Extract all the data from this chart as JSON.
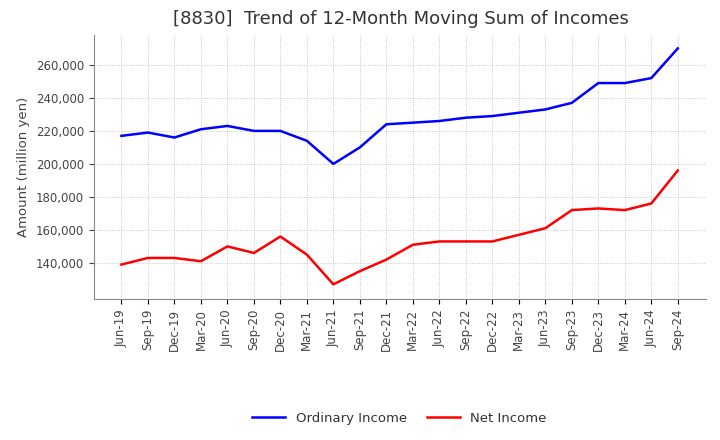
{
  "title": "[8830]  Trend of 12-Month Moving Sum of Incomes",
  "ylabel": "Amount (million yen)",
  "background_color": "#ffffff",
  "grid_color": "#bbbbbb",
  "x_labels": [
    "Jun-19",
    "Sep-19",
    "Dec-19",
    "Mar-20",
    "Jun-20",
    "Sep-20",
    "Dec-20",
    "Mar-21",
    "Jun-21",
    "Sep-21",
    "Dec-21",
    "Mar-22",
    "Jun-22",
    "Sep-22",
    "Dec-22",
    "Mar-23",
    "Jun-23",
    "Sep-23",
    "Dec-23",
    "Mar-24",
    "Jun-24",
    "Sep-24"
  ],
  "ordinary_income": [
    217000,
    219000,
    216000,
    221000,
    223000,
    220000,
    220000,
    214000,
    200000,
    210000,
    224000,
    225000,
    226000,
    228000,
    229000,
    231000,
    233000,
    237000,
    249000,
    249000,
    252000,
    270000
  ],
  "net_income": [
    139000,
    143000,
    143000,
    141000,
    150000,
    146000,
    156000,
    145000,
    127000,
    135000,
    142000,
    151000,
    153000,
    153000,
    153000,
    157000,
    161000,
    172000,
    173000,
    172000,
    176000,
    196000
  ],
  "ordinary_color": "#0000ff",
  "net_color": "#ff0000",
  "ylim_min": 118000,
  "ylim_max": 278000,
  "yticks": [
    140000,
    160000,
    180000,
    200000,
    220000,
    240000,
    260000
  ],
  "legend_labels": [
    "Ordinary Income",
    "Net Income"
  ],
  "line_width": 1.8,
  "title_fontsize": 13,
  "tick_fontsize": 8.5,
  "ylabel_fontsize": 9.5
}
